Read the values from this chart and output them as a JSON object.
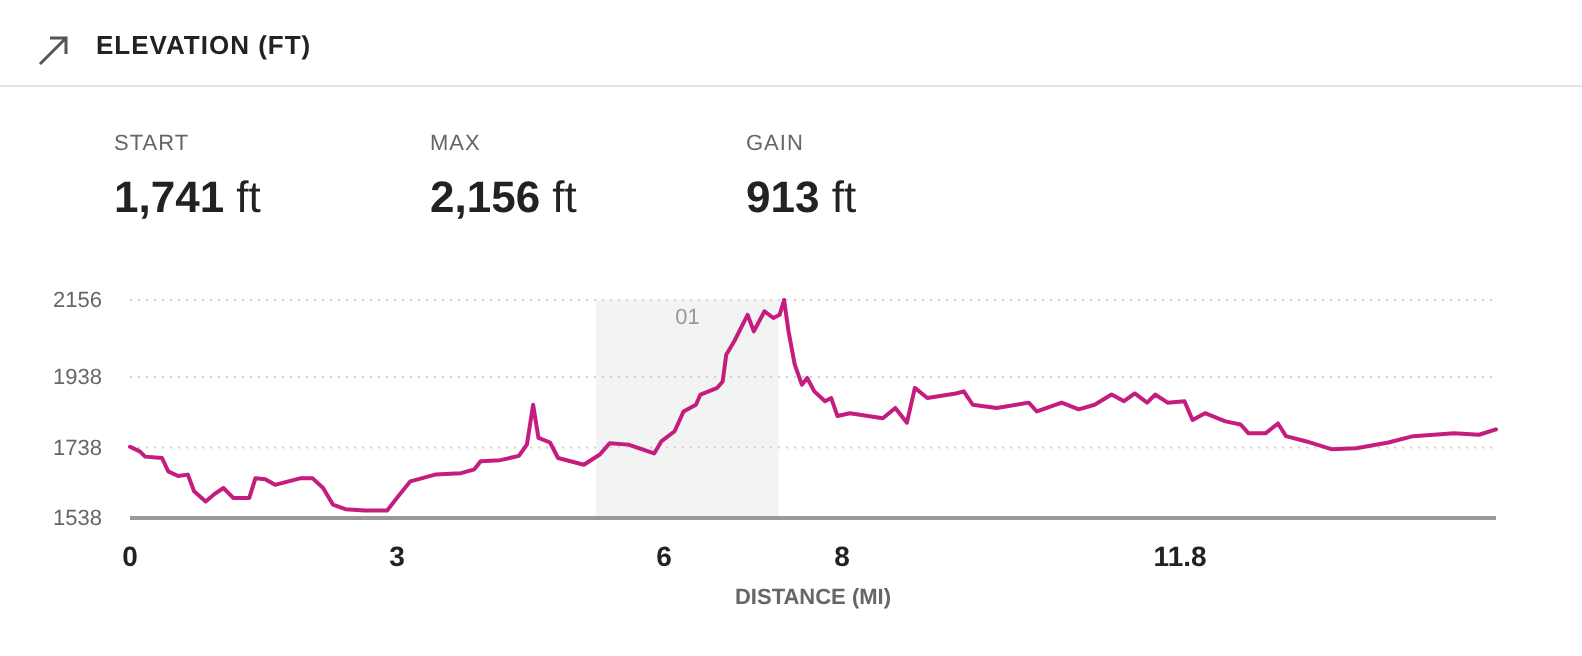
{
  "chart_data": {
    "type": "line",
    "title": "ELEVATION (FT)",
    "xlabel": "DISTANCE (MI)",
    "annotations": [
      "START",
      "1,741 ft",
      "MAX",
      "2,156 ft",
      "GAIN",
      "913 ft"
    ],
    "xlim": [
      0,
      15.35
    ],
    "ylim": [
      1538,
      2156
    ],
    "xticks": [
      0,
      3,
      6,
      8,
      11.8
    ],
    "yticks": [
      1538,
      1738,
      1938,
      2156
    ],
    "grid": "y",
    "marker": "none",
    "line_style": "solid",
    "bands": [
      {
        "axis": "x",
        "from": 5.24,
        "to": 7.29,
        "label": "01",
        "color": "#f2f4f4"
      }
    ],
    "series": [
      {
        "color": "#c41c7f",
        "x": [
          0,
          0.11,
          0.17,
          0.36,
          0.43,
          0.54,
          0.65,
          0.72,
          0.85,
          0.94,
          1.05,
          1.16,
          1.34,
          1.41,
          1.52,
          1.63,
          1.92,
          2.05,
          2.17,
          2.28,
          2.42,
          2.64,
          2.89,
          3.0,
          3.15,
          3.43,
          3.72,
          3.87,
          3.94,
          4.16,
          4.37,
          4.46,
          4.53,
          4.59,
          4.72,
          4.81,
          4.95,
          5.1,
          5.28,
          5.39,
          5.6,
          5.89,
          5.97,
          6.12,
          6.22,
          6.36,
          6.41,
          6.6,
          6.66,
          6.7,
          6.79,
          6.94,
          7.01,
          7.13,
          7.23,
          7.3,
          7.35,
          7.4,
          7.47,
          7.55,
          7.61,
          7.69,
          7.81,
          7.88,
          7.95,
          8.09,
          8.46,
          8.6,
          8.73,
          8.82,
          8.96,
          9.28,
          9.37,
          9.47,
          9.74,
          10.1,
          10.19,
          10.47,
          10.66,
          10.84,
          11.03,
          11.17,
          11.29,
          11.43,
          11.52,
          11.66,
          11.85,
          11.94,
          12.08,
          12.31,
          12.48,
          12.57,
          12.76,
          12.9,
          12.99,
          13.22,
          13.5,
          13.78,
          14.14,
          14.42,
          14.88,
          15.16,
          15.35
        ],
        "values": [
          1740,
          1727,
          1712,
          1708,
          1670,
          1657,
          1661,
          1614,
          1585,
          1604,
          1623,
          1595,
          1595,
          1651,
          1648,
          1632,
          1651,
          1651,
          1623,
          1576,
          1563,
          1559,
          1559,
          1595,
          1642,
          1661,
          1665,
          1676,
          1699,
          1702,
          1714,
          1746,
          1859,
          1765,
          1752,
          1708,
          1699,
          1689,
          1718,
          1750,
          1746,
          1721,
          1755,
          1784,
          1840,
          1859,
          1888,
          1907,
          1925,
          2001,
          2039,
          2114,
          2067,
          2124,
          2105,
          2114,
          2156,
          2067,
          1973,
          1916,
          1935,
          1897,
          1869,
          1878,
          1827,
          1835,
          1821,
          1850,
          1808,
          1907,
          1878,
          1891,
          1897,
          1859,
          1850,
          1865,
          1840,
          1865,
          1846,
          1859,
          1888,
          1869,
          1891,
          1865,
          1888,
          1865,
          1869,
          1816,
          1835,
          1812,
          1803,
          1778,
          1778,
          1806,
          1770,
          1755,
          1733,
          1736,
          1752,
          1770,
          1778,
          1774,
          1789
        ]
      }
    ]
  }
}
